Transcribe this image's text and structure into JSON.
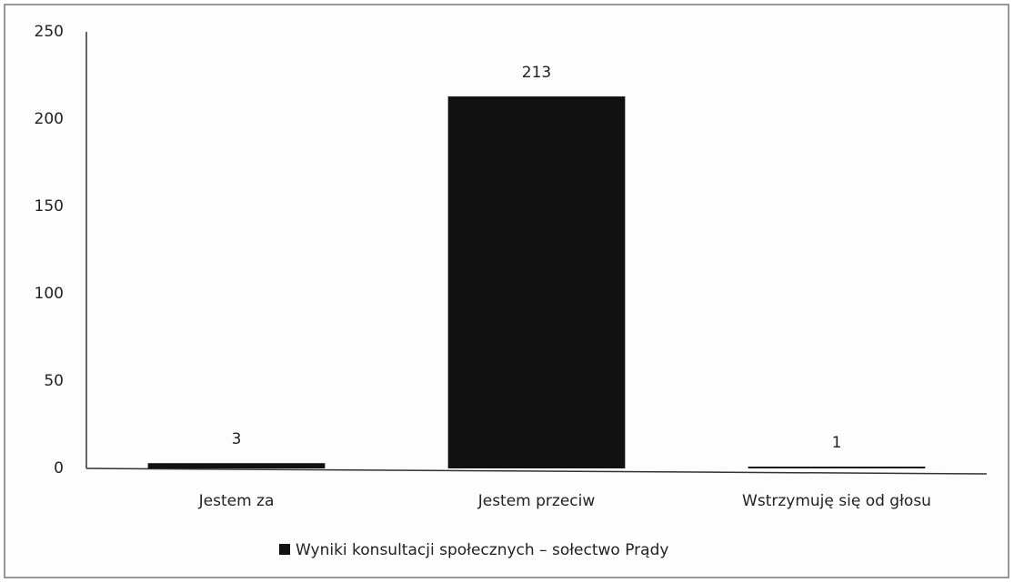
{
  "chart_data": {
    "type": "bar",
    "categories": [
      "Jestem za",
      "Jestem przeciw",
      "Wstrzymuję się od głosu"
    ],
    "series": [
      {
        "name": "Wyniki konsultacji społecznych – sołectwo Prądy",
        "color": "#111111",
        "values": [
          3,
          213,
          1
        ]
      }
    ],
    "ylim": [
      0,
      250
    ],
    "yticks": [
      0,
      50,
      100,
      150,
      200,
      250
    ],
    "grid": false,
    "data_labels": true,
    "legend": "bottom"
  }
}
